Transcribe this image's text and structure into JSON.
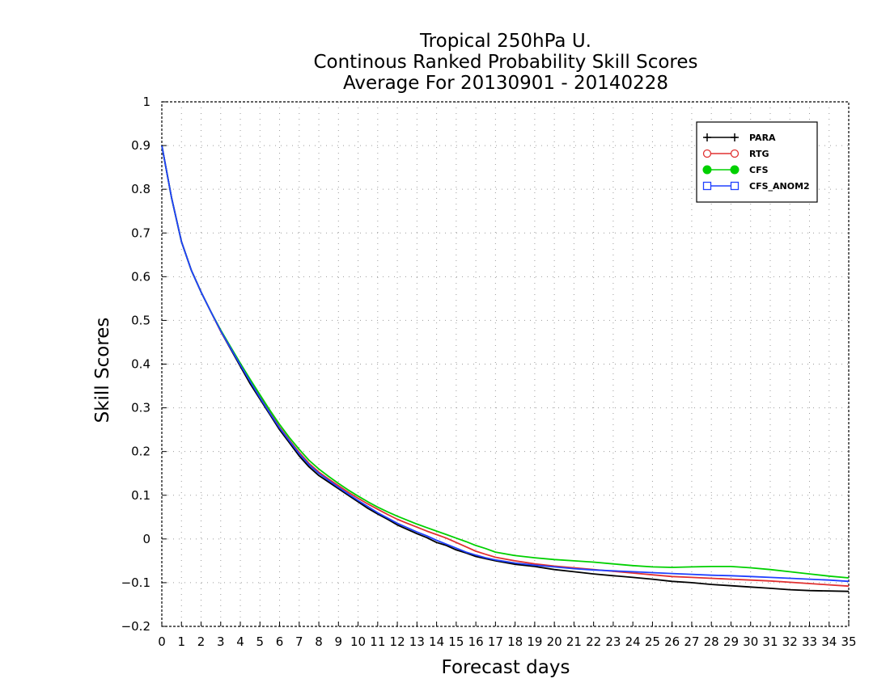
{
  "chart_data": {
    "type": "line",
    "title": [
      "Tropical 250hPa U.",
      "Continous Ranked Probability Skill Scores",
      "Average For 20130901 - 20140228"
    ],
    "xlabel": "Forecast days",
    "ylabel": "Skill Scores",
    "xlim": [
      0,
      35
    ],
    "ylim": [
      -0.2,
      1
    ],
    "x_ticks": [
      0,
      1,
      2,
      3,
      4,
      5,
      6,
      7,
      8,
      9,
      10,
      11,
      12,
      13,
      14,
      15,
      16,
      17,
      18,
      19,
      20,
      21,
      22,
      23,
      24,
      25,
      26,
      27,
      28,
      29,
      30,
      31,
      32,
      33,
      34,
      35
    ],
    "y_ticks": [
      -0.2,
      -0.1,
      0,
      0.1,
      0.2,
      0.3,
      0.4,
      0.5,
      0.6,
      0.7,
      0.8,
      0.9,
      1
    ],
    "y_tick_labels": [
      "−0.2",
      "−0.1",
      "0",
      "0.1",
      "0.2",
      "0.3",
      "0.4",
      "0.5",
      "0.6",
      "0.7",
      "0.8",
      "0.9",
      "1"
    ],
    "grid": true,
    "legend_position": "top-right",
    "series": [
      {
        "name": "PARA",
        "color": "#000000",
        "marker": "plus",
        "x": [
          0,
          0.5,
          1,
          1.5,
          2,
          2.5,
          3,
          3.5,
          4,
          4.5,
          5,
          5.5,
          6,
          6.5,
          7,
          7.5,
          8,
          8.5,
          9,
          9.5,
          10,
          10.5,
          11,
          11.5,
          12,
          12.5,
          13,
          13.5,
          14,
          14.5,
          15,
          15.5,
          16,
          16.5,
          17,
          18,
          19,
          20,
          21,
          22,
          23,
          24,
          25,
          26,
          27,
          28,
          29,
          30,
          31,
          32,
          33,
          34,
          35
        ],
        "values": [
          0.9,
          0.78,
          0.68,
          0.615,
          0.565,
          0.52,
          0.475,
          0.435,
          0.395,
          0.355,
          0.32,
          0.285,
          0.25,
          0.22,
          0.19,
          0.165,
          0.145,
          0.13,
          0.115,
          0.1,
          0.085,
          0.07,
          0.057,
          0.045,
          0.032,
          0.022,
          0.012,
          0.003,
          -0.008,
          -0.015,
          -0.025,
          -0.032,
          -0.04,
          -0.045,
          -0.05,
          -0.058,
          -0.063,
          -0.07,
          -0.075,
          -0.08,
          -0.084,
          -0.088,
          -0.092,
          -0.097,
          -0.1,
          -0.104,
          -0.107,
          -0.11,
          -0.113,
          -0.116,
          -0.118,
          -0.119,
          -0.12
        ]
      },
      {
        "name": "RTG",
        "color": "#e03030",
        "marker": "circle-open",
        "x": [
          0,
          0.5,
          1,
          1.5,
          2,
          2.5,
          3,
          3.5,
          4,
          4.5,
          5,
          5.5,
          6,
          6.5,
          7,
          7.5,
          8,
          8.5,
          9,
          9.5,
          10,
          10.5,
          11,
          11.5,
          12,
          12.5,
          13,
          13.5,
          14,
          14.5,
          15,
          15.5,
          16,
          16.5,
          17,
          18,
          19,
          20,
          21,
          22,
          23,
          24,
          25,
          26,
          27,
          28,
          29,
          30,
          31,
          32,
          33,
          34,
          35
        ],
        "values": [
          0.9,
          0.78,
          0.68,
          0.615,
          0.565,
          0.52,
          0.475,
          0.437,
          0.4,
          0.362,
          0.325,
          0.29,
          0.256,
          0.226,
          0.198,
          0.173,
          0.153,
          0.137,
          0.122,
          0.107,
          0.093,
          0.08,
          0.068,
          0.056,
          0.045,
          0.036,
          0.027,
          0.018,
          0.01,
          0.002,
          -0.008,
          -0.018,
          -0.028,
          -0.035,
          -0.042,
          -0.05,
          -0.057,
          -0.062,
          -0.066,
          -0.07,
          -0.074,
          -0.078,
          -0.082,
          -0.086,
          -0.088,
          -0.09,
          -0.092,
          -0.094,
          -0.096,
          -0.099,
          -0.102,
          -0.105,
          -0.108
        ]
      },
      {
        "name": "CFS",
        "color": "#00d000",
        "marker": "circle-filled",
        "x": [
          0,
          0.5,
          1,
          1.5,
          2,
          2.5,
          3,
          3.5,
          4,
          4.5,
          5,
          5.5,
          6,
          6.5,
          7,
          7.5,
          8,
          8.5,
          9,
          9.5,
          10,
          10.5,
          11,
          11.5,
          12,
          12.5,
          13,
          13.5,
          14,
          14.5,
          15,
          15.5,
          16,
          16.5,
          17,
          18,
          19,
          20,
          21,
          22,
          23,
          24,
          25,
          26,
          27,
          28,
          29,
          30,
          31,
          32,
          33,
          34,
          35
        ],
        "values": [
          0.9,
          0.78,
          0.68,
          0.615,
          0.565,
          0.52,
          0.478,
          0.44,
          0.402,
          0.365,
          0.33,
          0.295,
          0.262,
          0.232,
          0.205,
          0.18,
          0.16,
          0.143,
          0.127,
          0.112,
          0.098,
          0.085,
          0.073,
          0.062,
          0.052,
          0.043,
          0.034,
          0.026,
          0.018,
          0.01,
          0.002,
          -0.006,
          -0.015,
          -0.022,
          -0.03,
          -0.038,
          -0.043,
          -0.047,
          -0.05,
          -0.053,
          -0.057,
          -0.061,
          -0.064,
          -0.065,
          -0.064,
          -0.063,
          -0.063,
          -0.066,
          -0.07,
          -0.075,
          -0.08,
          -0.085,
          -0.089
        ]
      },
      {
        "name": "CFS_ANOM2",
        "color": "#2040ff",
        "marker": "square-open",
        "x": [
          0,
          0.5,
          1,
          1.5,
          2,
          2.5,
          3,
          3.5,
          4,
          4.5,
          5,
          5.5,
          6,
          6.5,
          7,
          7.5,
          8,
          8.5,
          9,
          9.5,
          10,
          10.5,
          11,
          11.5,
          12,
          12.5,
          13,
          13.5,
          14,
          14.5,
          15,
          15.5,
          16,
          16.5,
          17,
          18,
          19,
          20,
          21,
          22,
          23,
          24,
          25,
          26,
          27,
          28,
          29,
          30,
          31,
          32,
          33,
          34,
          35
        ],
        "values": [
          0.9,
          0.78,
          0.68,
          0.615,
          0.565,
          0.52,
          0.476,
          0.437,
          0.398,
          0.36,
          0.323,
          0.288,
          0.254,
          0.224,
          0.195,
          0.17,
          0.15,
          0.134,
          0.118,
          0.103,
          0.088,
          0.074,
          0.06,
          0.048,
          0.036,
          0.026,
          0.016,
          0.007,
          -0.003,
          -0.012,
          -0.021,
          -0.03,
          -0.037,
          -0.043,
          -0.048,
          -0.055,
          -0.06,
          -0.064,
          -0.068,
          -0.071,
          -0.073,
          -0.075,
          -0.077,
          -0.079,
          -0.081,
          -0.083,
          -0.084,
          -0.086,
          -0.088,
          -0.09,
          -0.092,
          -0.094,
          -0.097
        ]
      }
    ]
  }
}
